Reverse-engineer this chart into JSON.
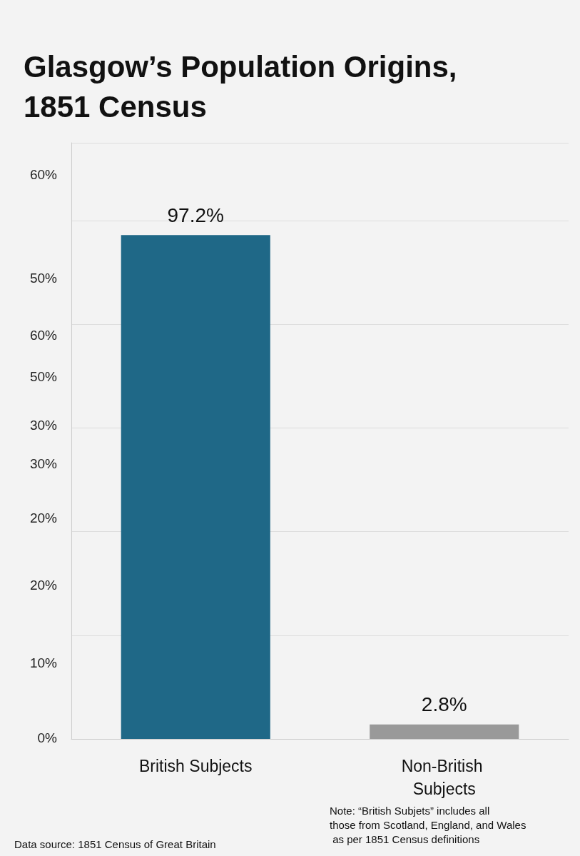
{
  "chart_data": {
    "type": "bar",
    "title": "Glasgow’s Population Origins, 1851 Census",
    "categories": [
      "British Subjects",
      "Non-British Subjects"
    ],
    "values": [
      97.2,
      2.8
    ],
    "value_labels": [
      "97.2%",
      "2.8%"
    ],
    "colors": [
      "#1f6887",
      "#999999"
    ],
    "ylim": [
      0,
      115
    ],
    "tick_labels": "x",
    "grid": "y",
    "annotations": [
      "60%",
      "50%",
      "60%",
      "50%",
      "30%",
      "30%",
      "20%",
      "20%",
      "10%",
      "0%",
      "Data source: 1851 Census of Great Britain",
      "Note: “British Subjets” includes all those from Scotland, England, and Wales as per 1851 Census definitions"
    ]
  }
}
